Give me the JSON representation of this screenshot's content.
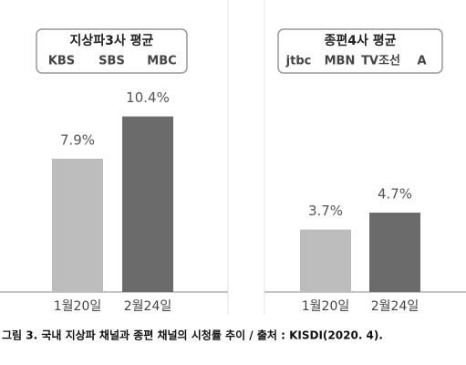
{
  "chart_data": [
    {
      "type": "bar",
      "title": "지상파3사 평균",
      "logos": [
        "KBS",
        "SBS",
        "MBC"
      ],
      "categories": [
        "1월20일",
        "2월24일"
      ],
      "values": [
        7.9,
        10.4
      ],
      "value_labels": [
        "7.9%",
        "10.4%"
      ],
      "colors": [
        "#bdbdbd",
        "#6b6b6b"
      ],
      "ylim": [
        0,
        12
      ]
    },
    {
      "type": "bar",
      "title": "종편4사 평균",
      "logos": [
        "jtbc",
        "MBN",
        "TV조선",
        "A"
      ],
      "categories": [
        "1월20일",
        "2월24일"
      ],
      "values": [
        3.7,
        4.7
      ],
      "value_labels": [
        "3.7%",
        "4.7%"
      ],
      "colors": [
        "#bdbdbd",
        "#6b6b6b"
      ],
      "ylim": [
        0,
        12
      ]
    }
  ],
  "caption": "그림 3. 국내 지상파 채널과 종편 채널의 시청률 추이 / 출처 : KISDI(2020. 4)."
}
